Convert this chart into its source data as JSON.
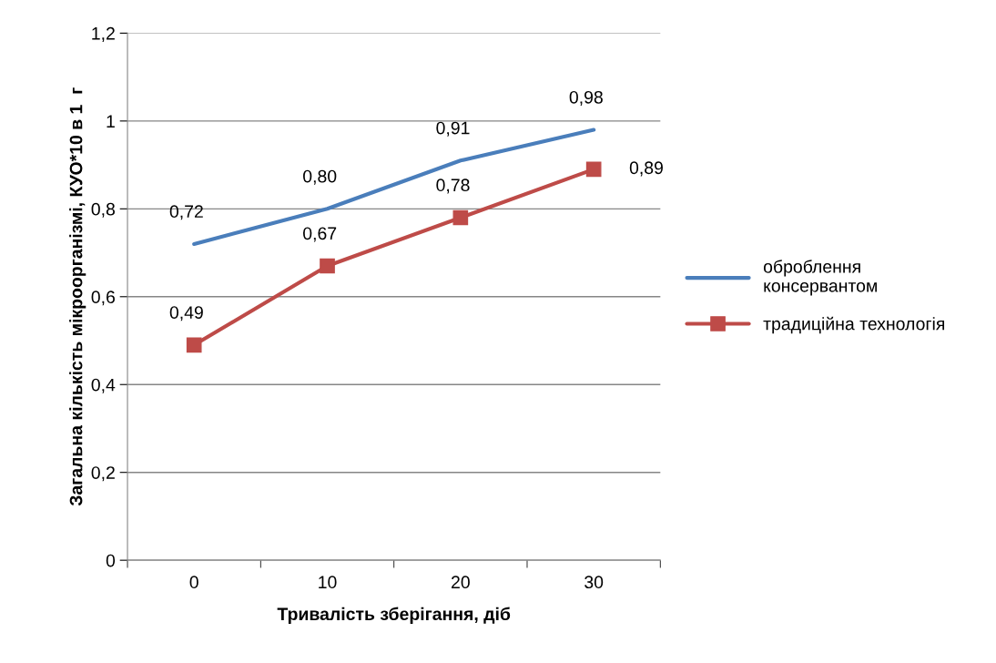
{
  "chart_data": {
    "type": "line",
    "xlabel": "Тривалість зберігання, діб",
    "ylabel": "Загальна кількість мікроорганізмі, КУО*10 в 1  г",
    "categories": [
      "0",
      "10",
      "20",
      "30"
    ],
    "series": [
      {
        "name": "оброблення консервантом",
        "color": "#4a7ebb",
        "marker": "none",
        "values": [
          0.72,
          0.8,
          0.91,
          0.98
        ],
        "value_labels": [
          "0,72",
          "0,80",
          "0,91",
          "0,98"
        ]
      },
      {
        "name": "традиційна технологія",
        "color": "#be4b48",
        "marker": "square",
        "values": [
          0.49,
          0.67,
          0.78,
          0.89
        ],
        "value_labels": [
          "0,49",
          "0,67",
          "0,78",
          "0,89"
        ]
      }
    ],
    "ylim": [
      0,
      1.2
    ],
    "yticks": [
      0,
      {
        "value": 0.2,
        "label": "0,2"
      },
      {
        "value": 0.4,
        "label": "0,4"
      },
      {
        "value": 0.6,
        "label": "0,6"
      },
      {
        "value": 0.8,
        "label": "0,8"
      },
      1,
      {
        "value": 1.2,
        "label": "1,2"
      }
    ],
    "grid": "y",
    "legend": "right",
    "line_style": "solid"
  }
}
